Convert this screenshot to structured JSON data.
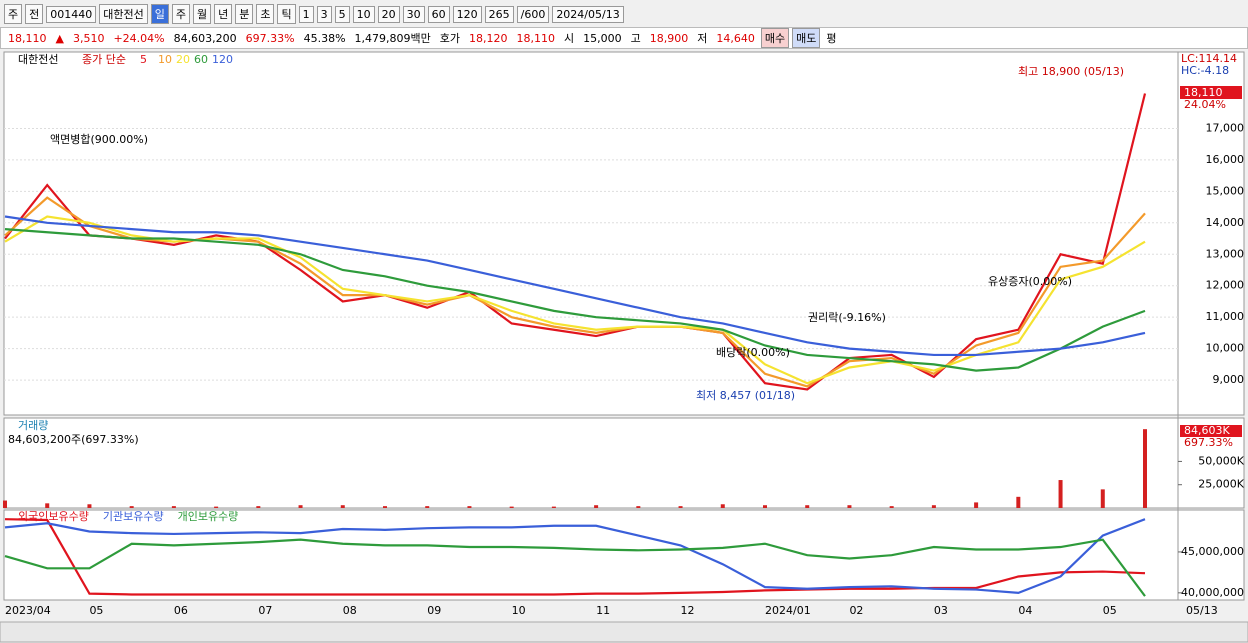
{
  "toolbar": {
    "items": [
      "주",
      "전",
      "001440",
      "대한전선",
      "일",
      "주",
      "월",
      "년",
      "분",
      "초",
      "틱",
      "1",
      "3",
      "5",
      "10",
      "20",
      "30",
      "60",
      "120",
      "265",
      "/600",
      "2024/05/13"
    ]
  },
  "info_bar": {
    "price": "18,110",
    "arrow": "▲",
    "change": "3,510",
    "change_pct": "+24.04%",
    "volume": "84,603,200",
    "volume_pct": "697.33%",
    "turnover": "45.38%",
    "amount": "1,479,809백만",
    "quote_label": "호가",
    "ask": "18,120",
    "bid": "18,110",
    "open_label": "시",
    "open": "15,000",
    "high_label": "고",
    "high": "18,900",
    "low_label": "저",
    "low": "14,640",
    "buy": "매수",
    "sell": "매도",
    "avg": "평"
  },
  "chart_data": [
    {
      "type": "line",
      "stock_name": "대한전선",
      "legend_title": "종가 단순",
      "lc": "LC:114.14",
      "hc": "HC:-4.18",
      "last_label": "18,110",
      "last_pct": "24.04%",
      "annotations": [
        "최고 18,900 (05/13)",
        "최저 8,457 (01/18)",
        "액면병합(900.00%)",
        "권리락(-9.16%)",
        "배당락(0.00%)",
        "유상증자(0.00%)"
      ],
      "categories": [
        "2023/04",
        null,
        "05",
        null,
        "06",
        null,
        "07",
        null,
        "08",
        null,
        "09",
        null,
        "10",
        null,
        "11",
        null,
        "12",
        null,
        "2024/01",
        null,
        "02",
        null,
        "03",
        null,
        "04",
        null,
        "05",
        null
      ],
      "x_end_label": "05/13",
      "ylim": [
        7890,
        19430
      ],
      "yticks": [
        {
          "value": 9000,
          "label": "9,000"
        },
        {
          "value": 10000,
          "label": "10,000"
        },
        {
          "value": 11000,
          "label": "11,000"
        },
        {
          "value": 12000,
          "label": "12,000"
        },
        {
          "value": 13000,
          "label": "13,000"
        },
        {
          "value": 14000,
          "label": "14,000"
        },
        {
          "value": 15000,
          "label": "15,000"
        },
        {
          "value": 16000,
          "label": "16,000"
        },
        {
          "value": 17000,
          "label": "17,000"
        }
      ],
      "grid": true,
      "series": [
        {
          "name": "5",
          "color": "#e0141e",
          "values": [
            13500,
            15200,
            13600,
            13500,
            13300,
            13600,
            13400,
            12500,
            11500,
            11700,
            11300,
            11800,
            10800,
            10600,
            10400,
            10700,
            10700,
            10500,
            8900,
            8700,
            9700,
            9800,
            9100,
            10300,
            10600,
            13000,
            12700,
            18110
          ]
        },
        {
          "name": "10",
          "color": "#f39a2b",
          "values": [
            13600,
            14800,
            13900,
            13500,
            13400,
            13500,
            13400,
            12700,
            11700,
            11700,
            11400,
            11700,
            11000,
            10700,
            10500,
            10700,
            10700,
            10500,
            9200,
            8800,
            9600,
            9700,
            9200,
            10100,
            10500,
            12600,
            12800,
            14300
          ]
        },
        {
          "name": "20",
          "color": "#f5e330",
          "values": [
            13400,
            14200,
            14000,
            13600,
            13400,
            13500,
            13500,
            12900,
            11900,
            11700,
            11500,
            11700,
            11200,
            10800,
            10600,
            10700,
            10700,
            10600,
            9500,
            8900,
            9400,
            9600,
            9300,
            9800,
            10200,
            12200,
            12600,
            13400
          ]
        },
        {
          "name": "60",
          "color": "#2e9b3b",
          "values": [
            13800,
            13700,
            13600,
            13500,
            13500,
            13400,
            13300,
            13000,
            12500,
            12300,
            12000,
            11800,
            11500,
            11200,
            11000,
            10900,
            10800,
            10600,
            10100,
            9800,
            9700,
            9600,
            9500,
            9300,
            9400,
            10000,
            10700,
            11200
          ]
        },
        {
          "name": "120",
          "color": "#3a5fd9",
          "values": [
            14200,
            14000,
            13900,
            13800,
            13700,
            13700,
            13600,
            13400,
            13200,
            13000,
            12800,
            12500,
            12200,
            11900,
            11600,
            11300,
            11000,
            10800,
            10500,
            10200,
            10000,
            9900,
            9800,
            9800,
            9900,
            10000,
            10200,
            10500
          ]
        }
      ]
    },
    {
      "type": "bar",
      "title": "거래량",
      "subtitle": "84,603,200주(697.33%)",
      "last_label": "84,603K",
      "last_pct": "697.33%",
      "color": "#d42020",
      "ylim": [
        0,
        96600
      ],
      "yticks": [
        {
          "value": 25000,
          "label": "25,000K"
        },
        {
          "value": 50000,
          "label": "50,000K"
        }
      ],
      "values": [
        8000,
        5000,
        4000,
        2000,
        2000,
        1500,
        2000,
        3000,
        3000,
        2000,
        2000,
        2000,
        1500,
        1500,
        3000,
        2000,
        2000,
        4000,
        3000,
        3000,
        3000,
        2000,
        3000,
        6000,
        12000,
        30000,
        20000,
        84603
      ]
    },
    {
      "type": "line",
      "ylim": [
        39125000,
        50125000
      ],
      "yticks": [
        {
          "value": 40000000,
          "label": "40,000,000"
        },
        {
          "value": 45000000,
          "label": "45,000,000"
        }
      ],
      "series": [
        {
          "name": "외국인보유수량",
          "color": "#e0141e",
          "values": [
            49000000,
            48900000,
            39900000,
            39800000,
            39800000,
            39800000,
            39800000,
            39800000,
            39800000,
            39800000,
            39800000,
            39800000,
            39800000,
            39800000,
            39900000,
            39900000,
            40000000,
            40100000,
            40300000,
            40400000,
            40500000,
            40500000,
            40600000,
            40600000,
            42000000,
            42500000,
            42600000,
            42400000
          ]
        },
        {
          "name": "기관보유수량",
          "color": "#3a5fd9",
          "values": [
            48000000,
            48500000,
            47500000,
            47300000,
            47200000,
            47300000,
            47400000,
            47300000,
            47800000,
            47700000,
            47900000,
            48000000,
            48000000,
            48200000,
            48200000,
            47000000,
            45800000,
            43500000,
            40700000,
            40500000,
            40700000,
            40800000,
            40500000,
            40400000,
            40000000,
            42000000,
            47000000,
            49000000
          ]
        },
        {
          "name": "개인보유수량",
          "color": "#2e9b3b",
          "values": [
            44500000,
            43000000,
            43000000,
            46000000,
            45800000,
            46000000,
            46200000,
            46500000,
            46000000,
            45800000,
            45800000,
            45600000,
            45600000,
            45500000,
            45300000,
            45200000,
            45300000,
            45500000,
            46000000,
            44600000,
            44200000,
            44600000,
            45600000,
            45300000,
            45300000,
            45600000,
            46500000,
            39600000
          ]
        }
      ]
    }
  ]
}
